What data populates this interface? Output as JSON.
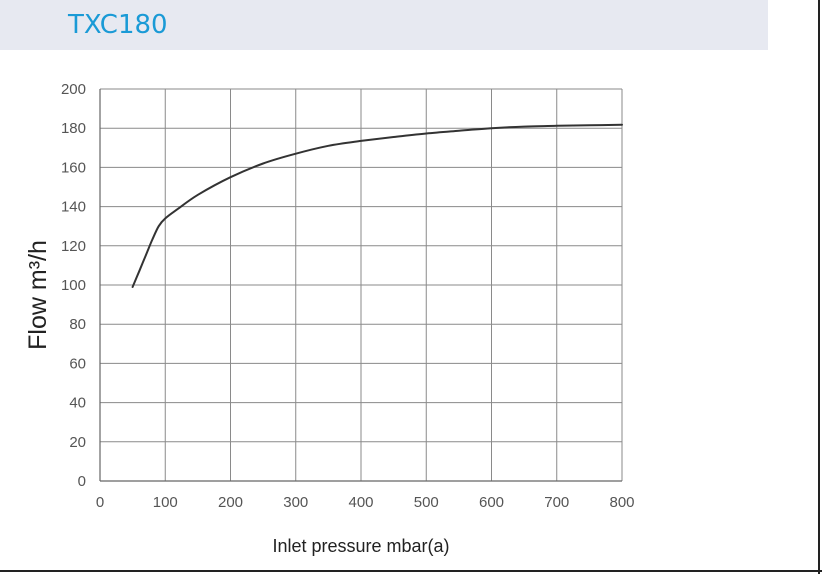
{
  "header": {
    "title": "TXC180",
    "accent": "#1a9ad6",
    "background": "#e7e9f1"
  },
  "chart_data": {
    "type": "line",
    "title": "",
    "xlabel": "Inlet pressure mbar(a)",
    "ylabel": "Flow m³/h",
    "xlim": [
      0,
      800
    ],
    "ylim": [
      0,
      200
    ],
    "xticks": [
      0,
      100,
      200,
      300,
      400,
      500,
      600,
      700,
      800
    ],
    "yticks": [
      0,
      20,
      40,
      60,
      80,
      100,
      120,
      140,
      160,
      180,
      200
    ],
    "grid": true,
    "legend": "none",
    "series": [
      {
        "color": "#333333",
        "x": [
          50,
          60,
          70,
          80,
          90,
          100,
          120,
          150,
          200,
          250,
          300,
          350,
          400,
          450,
          500,
          550,
          600,
          650,
          700,
          750,
          800
        ],
        "y": [
          99,
          107,
          115,
          123,
          130,
          134,
          139,
          146,
          155,
          162,
          167,
          171,
          173.5,
          175.5,
          177.3,
          178.7,
          180,
          180.8,
          181.2,
          181.5,
          181.8
        ]
      }
    ]
  }
}
